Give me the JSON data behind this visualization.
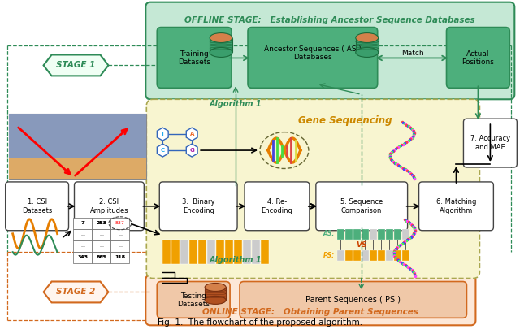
{
  "title": "Fig. 1.  The flowchart of the proposed algorithm.",
  "offline_title": "OFFLINE STAGE:   Establishing Ancestor Sequence Databases",
  "online_title": "ONLINE STAGE:   Obtaining Parent Sequences",
  "gene_seq_title": "Gene Sequencing",
  "algo1_text": "Algorithm 1",
  "stage1_text": "STAGE 1",
  "stage2_text": "STAGE 2",
  "match_text": "Match",
  "colors": {
    "green_bg": "#c5e8d5",
    "green_box": "#3da86a",
    "green_dark": "#2e8b57",
    "green_border": "#2e8b57",
    "orange_bg": "#fadadc",
    "orange_box": "#c0603a",
    "orange_border": "#d2691e",
    "yellow_bg": "#f8f5d0",
    "yellow_border": "#aaa850",
    "white": "#ffffff",
    "black": "#111111",
    "gray_border": "#444444",
    "orange_wave": "#e67e00",
    "green_wave": "#2e8b57",
    "seq_orange": "#f0a000",
    "seq_gray": "#cccccc",
    "seq_green": "#4daf7c"
  }
}
